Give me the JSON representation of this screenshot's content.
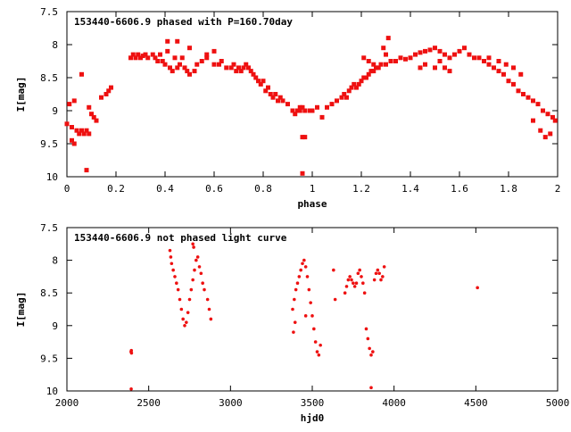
{
  "chart_data": [
    {
      "type": "scatter",
      "title": "153440-6606.9 phased with P=160.70day",
      "xlabel": "phase",
      "ylabel": "I[mag]",
      "xlim": [
        0,
        2
      ],
      "ylim": [
        7.5,
        10
      ],
      "y_inverted": true,
      "xticks": [
        "0",
        "0.2",
        "0.4",
        "0.6",
        "0.8",
        "1",
        "1.2",
        "1.4",
        "1.6",
        "1.8",
        "2"
      ],
      "yticks": [
        "7.5",
        "8",
        "8.5",
        "9",
        "9.5",
        "10"
      ],
      "marker_color": "#ee1111",
      "grid": false,
      "series": [
        {
          "x": [
            0.0,
            0.01,
            0.02,
            0.03,
            0.04,
            0.05,
            0.06,
            0.07,
            0.08,
            0.09,
            0.1,
            0.11,
            0.12,
            0.14,
            0.16,
            0.17,
            0.18,
            0.02,
            0.03,
            0.06,
            0.08,
            0.09,
            0.26,
            0.27,
            0.28,
            0.29,
            0.3,
            0.31,
            0.32,
            0.33,
            0.35,
            0.36,
            0.37,
            0.38,
            0.39,
            0.4,
            0.41,
            0.42,
            0.43,
            0.44,
            0.45,
            0.46,
            0.47,
            0.48,
            0.49,
            0.5,
            0.52,
            0.53,
            0.55,
            0.57,
            0.6,
            0.62,
            0.41,
            0.45,
            0.5,
            0.57,
            0.6,
            0.63,
            0.65,
            0.67,
            0.68,
            0.69,
            0.7,
            0.71,
            0.72,
            0.73,
            0.74,
            0.75,
            0.76,
            0.77,
            0.78,
            0.79,
            0.8,
            0.81,
            0.82,
            0.83,
            0.84,
            0.85,
            0.86,
            0.87,
            0.88,
            0.9,
            0.92,
            0.93,
            0.94,
            0.95,
            0.96,
            0.97,
            0.99,
            1.0,
            1.02,
            1.04,
            1.06,
            1.08,
            1.1,
            1.12,
            1.13,
            1.14,
            1.15,
            1.16,
            1.17,
            1.18,
            1.19,
            1.2,
            1.21,
            1.22,
            1.23,
            1.24,
            1.25,
            1.26,
            1.27,
            1.28,
            1.3,
            1.32,
            1.34,
            1.36,
            1.38,
            1.4,
            1.42,
            1.44,
            1.46,
            1.48,
            1.5,
            1.52,
            1.54,
            1.56,
            1.58,
            1.6,
            1.62,
            1.21,
            1.23,
            1.25,
            1.29,
            1.3,
            1.31,
            1.44,
            1.46,
            1.5,
            1.52,
            1.54,
            1.56,
            1.64,
            1.66,
            1.68,
            1.7,
            1.72,
            1.74,
            1.76,
            1.78,
            1.8,
            1.82,
            1.84,
            1.86,
            1.88,
            1.9,
            1.92,
            1.94,
            1.96,
            1.98,
            1.99,
            1.72,
            1.76,
            1.79,
            1.82,
            1.85,
            1.9,
            1.93,
            1.95,
            1.97,
            0.96,
            0.97,
            0.96,
            0.95
          ],
          "y": [
            9.2,
            8.9,
            9.25,
            8.85,
            9.3,
            9.35,
            9.3,
            9.35,
            9.3,
            9.35,
            9.05,
            9.1,
            9.15,
            8.8,
            8.75,
            8.7,
            8.65,
            9.45,
            9.5,
            8.45,
            9.9,
            8.95,
            8.2,
            8.15,
            8.2,
            8.15,
            8.2,
            8.17,
            8.15,
            8.2,
            8.15,
            8.2,
            8.25,
            8.15,
            8.25,
            8.3,
            8.1,
            8.35,
            8.4,
            8.2,
            8.35,
            8.3,
            8.2,
            8.35,
            8.4,
            8.45,
            8.4,
            8.3,
            8.25,
            8.2,
            8.3,
            8.3,
            7.95,
            7.95,
            8.05,
            8.15,
            8.1,
            8.25,
            8.35,
            8.35,
            8.3,
            8.4,
            8.35,
            8.4,
            8.35,
            8.3,
            8.35,
            8.4,
            8.45,
            8.5,
            8.55,
            8.6,
            8.55,
            8.7,
            8.65,
            8.75,
            8.8,
            8.75,
            8.85,
            8.8,
            8.85,
            8.9,
            9.0,
            9.05,
            9.0,
            9.0,
            8.95,
            9.0,
            9.0,
            9.0,
            8.95,
            9.1,
            8.95,
            8.9,
            8.85,
            8.8,
            8.75,
            8.8,
            8.7,
            8.65,
            8.6,
            8.65,
            8.6,
            8.55,
            8.5,
            8.5,
            8.45,
            8.4,
            8.4,
            8.35,
            8.35,
            8.3,
            8.3,
            8.25,
            8.25,
            8.2,
            8.22,
            8.2,
            8.15,
            8.12,
            8.1,
            8.08,
            8.05,
            8.1,
            8.15,
            8.2,
            8.15,
            8.1,
            8.05,
            8.2,
            8.25,
            8.3,
            8.05,
            8.15,
            7.9,
            8.35,
            8.3,
            8.35,
            8.25,
            8.35,
            8.4,
            8.15,
            8.2,
            8.2,
            8.25,
            8.3,
            8.35,
            8.4,
            8.45,
            8.55,
            8.6,
            8.7,
            8.75,
            8.8,
            8.85,
            8.9,
            9.0,
            9.05,
            9.1,
            9.15,
            8.2,
            8.25,
            8.3,
            8.35,
            8.45,
            9.15,
            9.3,
            9.4,
            9.35,
            9.4,
            9.4,
            9.95,
            8.95
          ]
        }
      ]
    },
    {
      "type": "scatter",
      "title": "153440-6606.9 not phased light curve",
      "xlabel": "hjd0",
      "ylabel": "I[mag]",
      "xlim": [
        2000,
        5000
      ],
      "ylim": [
        7.5,
        10
      ],
      "y_inverted": true,
      "xticks": [
        "2000",
        "2500",
        "3000",
        "3500",
        "4000",
        "4500",
        "5000"
      ],
      "yticks": [
        "7.5",
        "8",
        "8.5",
        "9",
        "9.5",
        "10"
      ],
      "marker_color": "#ee1111",
      "grid": false,
      "series": [
        {
          "x": [
            2392,
            2394,
            2395,
            2393,
            2630,
            2635,
            2640,
            2650,
            2660,
            2670,
            2680,
            2690,
            2700,
            2710,
            2720,
            2730,
            2740,
            2750,
            2760,
            2770,
            2780,
            2790,
            2800,
            2810,
            2820,
            2830,
            2840,
            2860,
            2870,
            2880,
            2770,
            2775,
            3380,
            3390,
            3400,
            3410,
            3420,
            3430,
            3440,
            3450,
            3460,
            3470,
            3480,
            3490,
            3500,
            3510,
            3520,
            3530,
            3540,
            3550,
            3630,
            3640,
            3700,
            3710,
            3720,
            3730,
            3740,
            3750,
            3760,
            3770,
            3780,
            3790,
            3800,
            3810,
            3820,
            3830,
            3840,
            3850,
            3860,
            3870,
            3880,
            3890,
            3900,
            3910,
            3920,
            3930,
            3940,
            3860,
            4510,
            3385,
            3395,
            3460
          ],
          "y": [
            9.4,
            9.38,
            9.42,
            9.97,
            7.85,
            7.95,
            8.05,
            8.15,
            8.25,
            8.35,
            8.45,
            8.6,
            8.75,
            8.9,
            9.0,
            8.95,
            8.8,
            8.6,
            8.45,
            8.3,
            8.15,
            8.0,
            7.95,
            8.1,
            8.2,
            8.35,
            8.45,
            8.6,
            8.75,
            8.9,
            7.75,
            7.8,
            8.75,
            8.6,
            8.45,
            8.35,
            8.25,
            8.15,
            8.05,
            8.0,
            8.1,
            8.25,
            8.45,
            8.65,
            8.85,
            9.05,
            9.25,
            9.4,
            9.45,
            9.3,
            8.15,
            8.6,
            8.5,
            8.4,
            8.3,
            8.25,
            8.3,
            8.35,
            8.4,
            8.35,
            8.2,
            8.15,
            8.25,
            8.35,
            8.5,
            9.05,
            9.2,
            9.35,
            9.45,
            9.4,
            8.3,
            8.2,
            8.15,
            8.2,
            8.3,
            8.25,
            8.1,
            9.95,
            8.42,
            9.1,
            8.95,
            8.85
          ]
        }
      ]
    }
  ]
}
